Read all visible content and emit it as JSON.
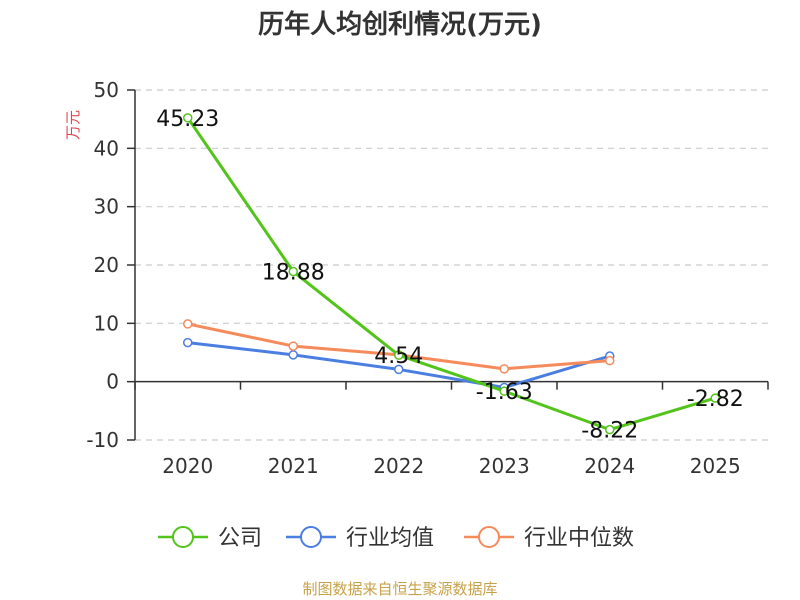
{
  "chart_data": {
    "type": "line",
    "title": "历年人均创利情况(万元)",
    "ylabel": "万元",
    "categories": [
      "2020",
      "2021",
      "2022",
      "2023",
      "2024",
      "2025"
    ],
    "ylim": [
      -10,
      50
    ],
    "yticks": [
      50,
      40,
      30,
      20,
      10,
      0,
      -10
    ],
    "grid": true,
    "legend_position": "bottom",
    "series": [
      {
        "name": "公司",
        "color": "#52c41a",
        "values": [
          45.23,
          18.88,
          4.54,
          -1.63,
          -8.22,
          -2.82
        ],
        "labels": [
          "45.23",
          "18.88",
          "4.54",
          "-1.63",
          "-8.22",
          "-2.82"
        ]
      },
      {
        "name": "行业均值",
        "color": "#4a7ee0",
        "values": [
          6.7,
          4.6,
          2.1,
          -1.0,
          4.4,
          null
        ]
      },
      {
        "name": "行业中位数",
        "color": "#f58b5a",
        "values": [
          9.9,
          6.1,
          4.6,
          2.2,
          3.6,
          null
        ]
      }
    ]
  },
  "footer": "制图数据来自恒生聚源数据库",
  "colors": {
    "title": "#333333",
    "ylabel": "#e0474c",
    "footer": "#c8a24a",
    "grid": "#cccccc"
  }
}
